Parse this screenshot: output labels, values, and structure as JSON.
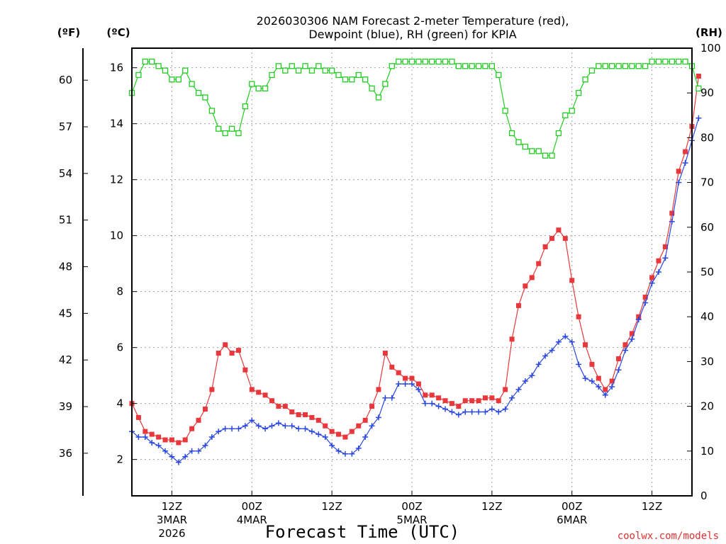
{
  "chart_data": {
    "type": "line",
    "title_line1": "2026030306 NAM Forecast 2-meter Temperature (red),",
    "title_line2": "Dewpoint (blue), RH (green) for KPIA",
    "xlabel": "Forecast Time (UTC)",
    "watermark": "coolwx.com/models",
    "units": {
      "fahrenheit": "(ºF)",
      "celsius": "(ºC)",
      "rh": "(RH)"
    },
    "x_range_hours": [
      0,
      84
    ],
    "x_ticks": [
      {
        "hour": 6,
        "l1": "12Z",
        "l2": "3MAR",
        "l3": "2026"
      },
      {
        "hour": 18,
        "l1": "00Z",
        "l2": "4MAR",
        "l3": ""
      },
      {
        "hour": 30,
        "l1": "12Z",
        "l2": "",
        "l3": ""
      },
      {
        "hour": 42,
        "l1": "00Z",
        "l2": "5MAR",
        "l3": ""
      },
      {
        "hour": 54,
        "l1": "12Z",
        "l2": "",
        "l3": ""
      },
      {
        "hour": 66,
        "l1": "00Z",
        "l2": "6MAR",
        "l3": ""
      },
      {
        "hour": 78,
        "l1": "12Z",
        "l2": "",
        "l3": ""
      }
    ],
    "c_range": [
      0.7,
      16.7
    ],
    "c_ticks": [
      2,
      4,
      6,
      8,
      10,
      12,
      14,
      16
    ],
    "f_ticks": [
      36,
      39,
      42,
      45,
      48,
      51,
      54,
      57,
      60
    ],
    "rh_range": [
      0,
      100
    ],
    "rh_ticks": [
      0,
      10,
      20,
      30,
      40,
      50,
      60,
      70,
      80,
      90,
      100
    ],
    "series": [
      {
        "name": "Temperature (°C)",
        "color": "#e8383b",
        "marker": "filled-square",
        "axis": "c",
        "values": [
          4.0,
          3.5,
          3.0,
          2.9,
          2.8,
          2.7,
          2.7,
          2.6,
          2.7,
          3.1,
          3.4,
          3.8,
          4.5,
          5.8,
          6.1,
          5.8,
          5.9,
          5.2,
          4.5,
          4.4,
          4.3,
          4.1,
          3.9,
          3.9,
          3.7,
          3.6,
          3.6,
          3.5,
          3.4,
          3.2,
          3.0,
          2.9,
          2.8,
          3.0,
          3.2,
          3.4,
          3.9,
          4.5,
          5.8,
          5.3,
          5.1,
          4.9,
          4.9,
          4.7,
          4.3,
          4.3,
          4.2,
          4.1,
          4.0,
          3.9,
          4.1,
          4.1,
          4.1,
          4.2,
          4.2,
          4.1,
          4.5,
          6.3,
          7.5,
          8.2,
          8.5,
          9.0,
          9.6,
          9.9,
          10.2,
          9.9,
          8.4,
          7.1,
          6.1,
          5.4,
          4.9,
          4.5,
          4.8,
          5.6,
          6.1,
          6.5,
          7.1,
          7.8,
          8.5,
          9.1,
          9.6,
          10.8,
          12.3,
          13.0,
          13.9,
          15.7
        ]
      },
      {
        "name": "Dewpoint (°C)",
        "color": "#2a47e0",
        "marker": "plus",
        "axis": "c",
        "values": [
          3.0,
          2.8,
          2.8,
          2.6,
          2.5,
          2.3,
          2.1,
          1.9,
          2.1,
          2.3,
          2.3,
          2.5,
          2.8,
          3.0,
          3.1,
          3.1,
          3.1,
          3.2,
          3.4,
          3.2,
          3.1,
          3.2,
          3.3,
          3.2,
          3.2,
          3.1,
          3.1,
          3.0,
          2.9,
          2.8,
          2.5,
          2.3,
          2.2,
          2.2,
          2.4,
          2.8,
          3.2,
          3.5,
          4.2,
          4.2,
          4.7,
          4.7,
          4.7,
          4.5,
          4.0,
          4.0,
          3.9,
          3.8,
          3.7,
          3.6,
          3.7,
          3.7,
          3.7,
          3.7,
          3.8,
          3.7,
          3.8,
          4.2,
          4.5,
          4.8,
          5.0,
          5.4,
          5.7,
          5.9,
          6.2,
          6.4,
          6.2,
          5.4,
          4.9,
          4.8,
          4.6,
          4.3,
          4.6,
          5.2,
          5.9,
          6.3,
          7.0,
          7.6,
          8.3,
          8.7,
          9.2,
          10.5,
          11.9,
          12.6,
          13.4,
          14.2
        ]
      },
      {
        "name": "RH (%)",
        "color": "#22cc22",
        "marker": "open-square",
        "axis": "rh",
        "values": [
          90,
          94,
          97,
          97,
          96,
          95,
          93,
          93,
          95,
          92,
          90,
          89,
          86,
          82,
          81,
          82,
          81,
          87,
          92,
          91,
          91,
          94,
          96,
          95,
          96,
          95,
          96,
          95,
          96,
          95,
          95,
          94,
          93,
          93,
          94,
          93,
          91,
          89,
          92,
          96,
          97,
          97,
          97,
          97,
          97,
          97,
          97,
          97,
          97,
          96,
          96,
          96,
          96,
          96,
          96,
          94,
          86,
          81,
          79,
          78,
          77,
          77,
          76,
          76,
          81,
          85,
          86,
          90,
          93,
          95,
          96,
          96,
          96,
          96,
          96,
          96,
          96,
          96,
          97,
          97,
          97,
          97,
          97,
          97,
          96,
          91
        ]
      }
    ]
  }
}
